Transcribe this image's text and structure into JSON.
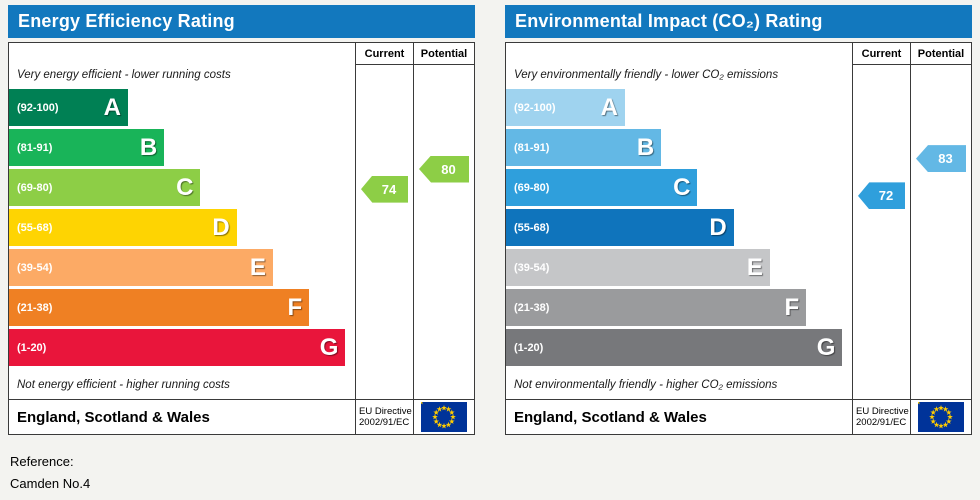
{
  "page": {
    "reference_label": "Reference:",
    "reference_value": "Camden No.4"
  },
  "charts": [
    {
      "title": "Energy Efficiency Rating",
      "header_color": "#1278be",
      "columns": {
        "current": "Current",
        "potential": "Potential"
      },
      "caption_top": "Very energy efficient - lower running costs",
      "caption_bottom": "Not energy efficient - higher running costs",
      "bands": [
        {
          "label": "A",
          "range": "(92-100)",
          "min": 92,
          "max": 100,
          "color": "#008054"
        },
        {
          "label": "B",
          "range": "(81-91)",
          "min": 81,
          "max": 91,
          "color": "#19b459"
        },
        {
          "label": "C",
          "range": "(69-80)",
          "min": 69,
          "max": 80,
          "color": "#8dce46"
        },
        {
          "label": "D",
          "range": "(55-68)",
          "min": 55,
          "max": 68,
          "color": "#fed402"
        },
        {
          "label": "E",
          "range": "(39-54)",
          "min": 39,
          "max": 54,
          "color": "#fcaa65"
        },
        {
          "label": "F",
          "range": "(21-38)",
          "min": 21,
          "max": 38,
          "color": "#ef8023"
        },
        {
          "label": "G",
          "range": "(1-20)",
          "min": 1,
          "max": 20,
          "color": "#e9153b"
        }
      ],
      "arrows": {
        "current": {
          "value": 74,
          "color": "#8dce46"
        },
        "potential": {
          "value": 80,
          "color": "#8dce46"
        }
      },
      "footer": {
        "region": "England, Scotland & Wales",
        "directive_line1": "EU Directive",
        "directive_line2": "2002/91/EC"
      }
    },
    {
      "title": "Environmental Impact (CO₂) Rating",
      "header_color": "#1278be",
      "columns": {
        "current": "Current",
        "potential": "Potential"
      },
      "caption_top": "Very environmentally friendly - lower CO₂ emissions",
      "caption_bottom": "Not environmentally friendly - higher CO₂ emissions",
      "bands": [
        {
          "label": "A",
          "range": "(92-100)",
          "min": 92,
          "max": 100,
          "color": "#9fd3ef"
        },
        {
          "label": "B",
          "range": "(81-91)",
          "min": 81,
          "max": 91,
          "color": "#63b8e5"
        },
        {
          "label": "C",
          "range": "(69-80)",
          "min": 69,
          "max": 80,
          "color": "#2f9fdc"
        },
        {
          "label": "D",
          "range": "(55-68)",
          "min": 55,
          "max": 68,
          "color": "#0f74bc"
        },
        {
          "label": "E",
          "range": "(39-54)",
          "min": 39,
          "max": 54,
          "color": "#c5c6c8"
        },
        {
          "label": "F",
          "range": "(21-38)",
          "min": 21,
          "max": 38,
          "color": "#9a9b9d"
        },
        {
          "label": "G",
          "range": "(1-20)",
          "min": 1,
          "max": 20,
          "color": "#77787b"
        }
      ],
      "arrows": {
        "current": {
          "value": 72,
          "color": "#2f9fdc"
        },
        "potential": {
          "value": 83,
          "color": "#63b8e5"
        }
      },
      "footer": {
        "region": "England, Scotland & Wales",
        "directive_line1": "EU Directive",
        "directive_line2": "2002/91/EC"
      }
    }
  ],
  "chart_data": [
    {
      "type": "bar",
      "title": "Energy Efficiency Rating",
      "categories": [
        "A (92-100)",
        "B (81-91)",
        "C (69-80)",
        "D (55-68)",
        "E (39-54)",
        "F (21-38)",
        "G (1-20)"
      ],
      "series": [
        {
          "name": "Current",
          "values": [
            74
          ],
          "band": "C"
        },
        {
          "name": "Potential",
          "values": [
            80
          ],
          "band": "C"
        }
      ],
      "value_range": [
        1,
        100
      ],
      "annotations": [
        "Very energy efficient - lower running costs",
        "Not energy efficient - higher running costs",
        "England, Scotland & Wales",
        "EU Directive 2002/91/EC"
      ]
    },
    {
      "type": "bar",
      "title": "Environmental Impact (CO₂) Rating",
      "categories": [
        "A (92-100)",
        "B (81-91)",
        "C (69-80)",
        "D (55-68)",
        "E (39-54)",
        "F (21-38)",
        "G (1-20)"
      ],
      "series": [
        {
          "name": "Current",
          "values": [
            72
          ],
          "band": "C"
        },
        {
          "name": "Potential",
          "values": [
            83
          ],
          "band": "B"
        }
      ],
      "value_range": [
        1,
        100
      ],
      "annotations": [
        "Very environmentally friendly - lower CO₂ emissions",
        "Not environmentally friendly - higher CO₂ emissions",
        "England, Scotland & Wales",
        "EU Directive 2002/91/EC"
      ]
    }
  ]
}
